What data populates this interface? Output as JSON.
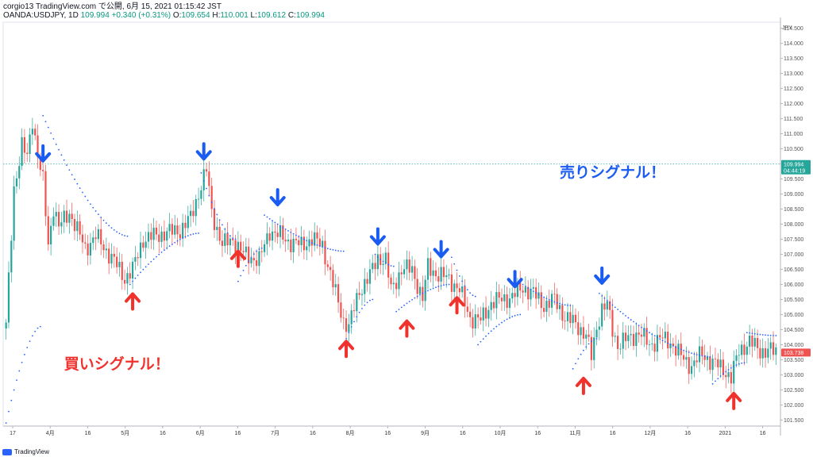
{
  "header": {
    "line1": "corgio13 TradingView.com で公開, 6月 15, 2021 01:15:42 JST",
    "symbol": "OANDA:USDJPY, 1D",
    "last": "109.994",
    "change": "+0.340 (+0.31%)",
    "o_label": "O:",
    "o": "109.654",
    "h_label": "H:",
    "h": "110.001",
    "l_label": "L:",
    "l": "109.612",
    "c_label": "C:",
    "c": "109.994"
  },
  "footer": {
    "brand": "TradingView"
  },
  "colors": {
    "up": "#26a69a",
    "down": "#ef5350",
    "sar": "#2962ff",
    "sell_arrow": "#1a5cf2",
    "buy_arrow": "#f0322d"
  },
  "chart_data": {
    "type": "candlestick",
    "unit": "JPY",
    "ylim": [
      101.3,
      114.7
    ],
    "y_ticks": [
      "101.500",
      "102.000",
      "102.500",
      "103.000",
      "103.500",
      "104.000",
      "104.500",
      "105.000",
      "105.500",
      "106.000",
      "106.500",
      "107.000",
      "107.500",
      "108.000",
      "108.500",
      "109.000",
      "109.500",
      "110.000",
      "110.500",
      "111.000",
      "111.500",
      "112.000",
      "112.500",
      "113.000",
      "113.500",
      "114.000",
      "114.500"
    ],
    "x_ticks": [
      "17",
      "4月",
      "16",
      "5月",
      "16",
      "6月",
      "16",
      "7月",
      "16",
      "8月",
      "16",
      "9月",
      "16",
      "10月",
      "16",
      "11月",
      "16",
      "12月",
      "16",
      "2021",
      "16"
    ],
    "price_labels": [
      {
        "value": 109.994,
        "text": "109.994",
        "sub": "04:44:19",
        "color": "#26a69a"
      },
      {
        "value": 103.738,
        "text": "103.738",
        "sub": "",
        "color": "#ef5350"
      }
    ],
    "ref_line": 109.994,
    "anchors": [
      [
        0,
        104.6
      ],
      [
        3,
        109.2
      ],
      [
        6,
        110.6
      ],
      [
        8,
        110.2
      ],
      [
        10,
        111.5
      ],
      [
        12,
        110.3
      ],
      [
        14,
        109.4
      ],
      [
        16,
        107.3
      ],
      [
        18,
        108.6
      ],
      [
        20,
        107.9
      ],
      [
        24,
        108.4
      ],
      [
        30,
        107.2
      ],
      [
        34,
        107.6
      ],
      [
        40,
        106.9
      ],
      [
        45,
        106.2
      ],
      [
        48,
        106.5
      ],
      [
        52,
        107.5
      ],
      [
        60,
        107.7
      ],
      [
        66,
        107.8
      ],
      [
        70,
        108.2
      ],
      [
        74,
        109.3
      ],
      [
        76,
        109.8
      ],
      [
        78,
        108.4
      ],
      [
        82,
        107.3
      ],
      [
        86,
        107.5
      ],
      [
        90,
        107.0
      ],
      [
        96,
        106.8
      ],
      [
        100,
        107.8
      ],
      [
        104,
        107.6
      ],
      [
        108,
        107.4
      ],
      [
        112,
        107.3
      ],
      [
        116,
        107.5
      ],
      [
        120,
        107.3
      ],
      [
        124,
        106.0
      ],
      [
        128,
        104.8
      ],
      [
        130,
        104.6
      ],
      [
        134,
        105.8
      ],
      [
        138,
        106.3
      ],
      [
        141,
        106.9
      ],
      [
        144,
        106.8
      ],
      [
        146,
        105.8
      ],
      [
        150,
        106.5
      ],
      [
        154,
        106.5
      ],
      [
        158,
        105.5
      ],
      [
        160,
        106.6
      ],
      [
        164,
        106.3
      ],
      [
        168,
        106.2
      ],
      [
        172,
        105.8
      ],
      [
        176,
        104.9
      ],
      [
        180,
        104.8
      ],
      [
        184,
        105.4
      ],
      [
        188,
        105.5
      ],
      [
        192,
        105.6
      ],
      [
        196,
        105.9
      ],
      [
        200,
        105.7
      ],
      [
        204,
        105.3
      ],
      [
        208,
        105.5
      ],
      [
        212,
        104.9
      ],
      [
        216,
        104.7
      ],
      [
        220,
        104.3
      ],
      [
        222,
        103.6
      ],
      [
        224,
        104.6
      ],
      [
        226,
        105.2
      ],
      [
        228,
        105.3
      ],
      [
        230,
        104.5
      ],
      [
        232,
        104.0
      ],
      [
        236,
        104.2
      ],
      [
        240,
        104.4
      ],
      [
        244,
        104.0
      ],
      [
        248,
        104.2
      ],
      [
        252,
        104.1
      ],
      [
        256,
        103.6
      ],
      [
        260,
        103.3
      ],
      [
        264,
        103.7
      ],
      [
        268,
        103.4
      ],
      [
        272,
        103.2
      ],
      [
        275,
        102.9
      ],
      [
        278,
        103.8
      ],
      [
        282,
        104.1
      ],
      [
        286,
        103.8
      ],
      [
        290,
        103.8
      ],
      [
        292,
        103.738
      ]
    ],
    "bar_count": 293,
    "sar_segments": [
      {
        "from": 0,
        "to": 13,
        "start": 101.4,
        "end": 104.6
      },
      {
        "from": 14,
        "to": 46,
        "start": 111.6,
        "end": 107.6
      },
      {
        "from": 47,
        "to": 73,
        "start": 106.0,
        "end": 107.7
      },
      {
        "from": 74,
        "to": 87,
        "start": 109.7,
        "end": 107.5
      },
      {
        "from": 88,
        "to": 97,
        "start": 106.1,
        "end": 107.2
      },
      {
        "from": 98,
        "to": 128,
        "start": 108.3,
        "end": 107.1
      },
      {
        "from": 129,
        "to": 139,
        "start": 104.2,
        "end": 105.5
      },
      {
        "from": 140,
        "to": 147,
        "start": 107.0,
        "end": 106.6
      },
      {
        "from": 148,
        "to": 168,
        "start": 105.1,
        "end": 106.0
      },
      {
        "from": 169,
        "to": 178,
        "start": 106.9,
        "end": 105.6
      },
      {
        "from": 179,
        "to": 195,
        "start": 104.0,
        "end": 105.0
      },
      {
        "from": 196,
        "to": 214,
        "start": 106.0,
        "end": 105.3
      },
      {
        "from": 215,
        "to": 224,
        "start": 103.2,
        "end": 104.2
      },
      {
        "from": 225,
        "to": 267,
        "start": 105.7,
        "end": 103.6
      },
      {
        "from": 268,
        "to": 280,
        "start": 102.7,
        "end": 103.4
      },
      {
        "from": 281,
        "to": 292,
        "start": 104.4,
        "end": 104.3
      }
    ],
    "sell_signals": [
      14,
      75,
      103,
      141,
      165,
      193,
      226
    ],
    "buy_signals": [
      48,
      88,
      129,
      152,
      171,
      219,
      276
    ],
    "annotations": [
      {
        "text": "売りシグナル！",
        "color": "#1a5cf2",
        "bar": 210,
        "price": 109.55
      },
      {
        "text": "買いシグナル！",
        "color": "#f0322d",
        "bar": 22,
        "price": 103.2
      }
    ]
  }
}
